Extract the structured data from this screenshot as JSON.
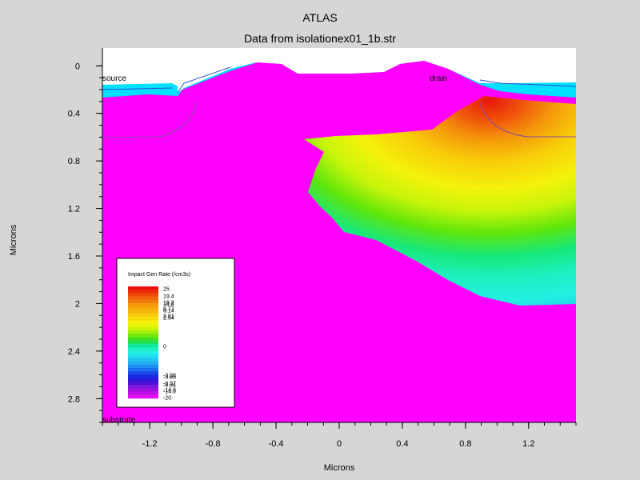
{
  "chart_data": {
    "type": "heatmap",
    "title": "ATLAS",
    "subtitle": "Data from isolationex01_1b.str",
    "xlabel": "Microns",
    "ylabel": "Microns",
    "xlim": [
      -1.5,
      1.5
    ],
    "ylim": [
      3.0,
      -0.15
    ],
    "x_ticks": [
      -1.2,
      -0.8,
      -0.4,
      0,
      0.4,
      0.8,
      1.2
    ],
    "x_tick_labels": [
      "-1.2",
      "-0.8",
      "-0.4",
      "0",
      "0.4",
      "0.8",
      "1.2"
    ],
    "y_ticks": [
      0,
      0.4,
      0.8,
      1.2,
      1.6,
      2,
      2.4,
      2.8
    ],
    "y_tick_labels": [
      "0",
      "0.4",
      "0.8",
      "1.2",
      "1.6",
      "2",
      "2.4",
      "2.8"
    ],
    "annotations": [
      {
        "id": "source",
        "text": "source",
        "x": -1.5,
        "y": 0.12
      },
      {
        "id": "drain",
        "text": "drain",
        "x": 0.57,
        "y": 0.12
      },
      {
        "id": "substrate",
        "text": "substrate",
        "x": -1.5,
        "y": 2.96
      }
    ],
    "legend": {
      "title": "Impact Gen Rate (/cm3s)",
      "position": "bottom-left",
      "levels": [
        {
          "label": "25",
          "color": "#e8140a"
        },
        {
          "label": "19.4",
          "color": "#ee4c0a"
        },
        {
          "label": "16.2",
          "color": "#f07a0a"
        },
        {
          "label": "14.8",
          "color": "#f29a0a"
        },
        {
          "label": "8.77",
          "color": "#f6b80a"
        },
        {
          "label": "6.14",
          "color": "#f8cc0a"
        },
        {
          "label": "2.81",
          "color": "#f6ee0a"
        },
        {
          "label": "2.54",
          "color": "#e8f50a"
        },
        {
          "label": "0",
          "color": "#22f0e0"
        },
        {
          "label": "-3.88",
          "color": "#1828e0"
        },
        {
          "label": "-3.65",
          "color": "#2828d8"
        },
        {
          "label": "-8.37",
          "color": "#6818d8"
        },
        {
          "label": "-8.54",
          "color": "#7818d8"
        },
        {
          "label": "-14.8",
          "color": "#a010e0"
        },
        {
          "label": "-14.9",
          "color": "#b010e8"
        },
        {
          "label": "-20",
          "color": "#e010f0"
        }
      ],
      "scale_colors": [
        "#e8140a",
        "#ea2c0a",
        "#ee4c0a",
        "#f0640a",
        "#f07a0a",
        "#f29a0a",
        "#f4aa0a",
        "#f6b80a",
        "#f8cc0a",
        "#f8dc0a",
        "#f6ee0a",
        "#e8f50a",
        "#c8f50a",
        "#a0f00a",
        "#70e80a",
        "#40e020",
        "#20e060",
        "#10e89a",
        "#18f0c8",
        "#22f0e0",
        "#20e0f0",
        "#20c8f0",
        "#20b0f0",
        "#2090f0",
        "#1870f0",
        "#1848e8",
        "#1828e0",
        "#2818d8",
        "#5010d8",
        "#7818d8",
        "#a010e0",
        "#c010e8",
        "#e010f0"
      ]
    },
    "colors": {
      "background": "#d6d6d6",
      "vacuum": "#ffffff",
      "substrate": "#ff00ff",
      "oxide_edge": "#00e0ff",
      "junction_line": "#8a4aa8"
    }
  }
}
